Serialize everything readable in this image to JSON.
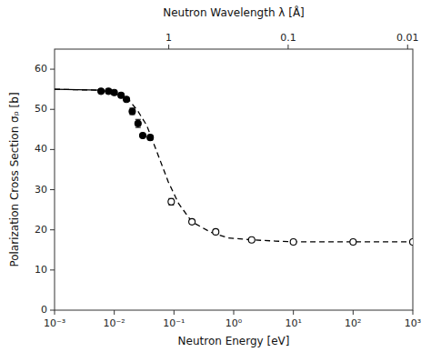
{
  "chart_data": {
    "type": "line",
    "x2label": "Neutron Wavelength λ [Å]",
    "xlabel": "Neutron Energy [eV]",
    "ylabel": "Polarization Cross Section σₚ [b]",
    "log": "x",
    "grid": false,
    "xlim": [
      0.001,
      1000
    ],
    "xticks": [
      {
        "value": 0.001,
        "label": "10⁻³"
      },
      {
        "value": 0.01,
        "label": "10⁻²"
      },
      {
        "value": 0.1,
        "label": "10⁻¹"
      },
      {
        "value": 1,
        "label": "10⁰"
      },
      {
        "value": 10,
        "label": "10¹"
      },
      {
        "value": 100,
        "label": "10²"
      },
      {
        "value": 1000,
        "label": "10³"
      }
    ],
    "x2lim": [
      0.001,
      1000
    ],
    "x2ticks": [
      {
        "value": 0.0818,
        "label": "1"
      },
      {
        "value": 8.18,
        "label": "0.1"
      },
      {
        "value": 818.0,
        "label": "0.01"
      }
    ],
    "ylim": [
      0,
      65
    ],
    "yticks": [
      0,
      10,
      20,
      30,
      40,
      50,
      60
    ],
    "series": [
      {
        "type": "line",
        "line_style": "dashed",
        "color": "#000000",
        "x": [
          0.001,
          0.005,
          0.008,
          0.012,
          0.018,
          0.025,
          0.035,
          0.05,
          0.08,
          0.12,
          0.2,
          0.4,
          0.8,
          2.0,
          5.0,
          10.0,
          50.0,
          100.0,
          500.0,
          1000.0
        ],
        "values": [
          55.0,
          54.8,
          54.5,
          53.8,
          52.2,
          49.5,
          46.0,
          40.0,
          32.0,
          26.5,
          22.0,
          19.5,
          18.0,
          17.5,
          17.2,
          17.0,
          17.0,
          17.0,
          17.0,
          17.0
        ]
      },
      {
        "type": "line",
        "line_style": "solid",
        "color": "#000000",
        "x": [
          0.001,
          0.006
        ],
        "values": [
          55.0,
          54.8
        ]
      },
      {
        "type": "scatter",
        "marker": "circle",
        "color": "#000000",
        "x": [
          0.006,
          0.008,
          0.01,
          0.013,
          0.016,
          0.02,
          0.025,
          0.03,
          0.04
        ],
        "values": [
          54.5,
          54.5,
          54.2,
          53.5,
          52.5,
          49.5,
          46.5,
          43.5,
          43.0
        ],
        "errors": [
          0.5,
          0.5,
          0.5,
          0.5,
          0.5,
          0.8,
          1.0,
          0.5,
          0.5
        ]
      },
      {
        "type": "scatter",
        "marker": "open-circle",
        "color": "#000000",
        "x": [
          0.09,
          0.2,
          0.5,
          2.0,
          10.0,
          100.0,
          1000.0
        ],
        "values": [
          27.0,
          22.0,
          19.5,
          17.5,
          17.0,
          17.0,
          17.0
        ],
        "errors": [
          0.8,
          0.5,
          0.3,
          0.3,
          0.3,
          0.3,
          0.3
        ]
      }
    ]
  }
}
